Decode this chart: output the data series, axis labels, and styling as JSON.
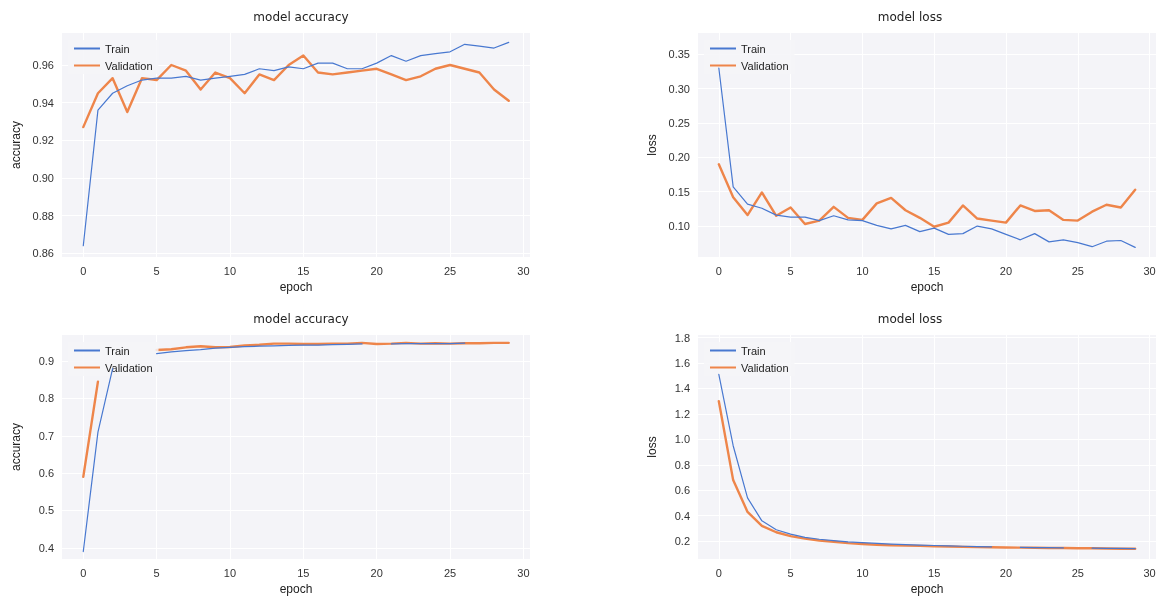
{
  "chart_data": [
    {
      "type": "line",
      "title": "model accuracy",
      "xlabel": "epoch",
      "ylabel": "accuracy",
      "x": [
        0,
        1,
        2,
        3,
        4,
        5,
        6,
        7,
        8,
        9,
        10,
        11,
        12,
        13,
        14,
        15,
        16,
        17,
        18,
        19,
        20,
        21,
        22,
        23,
        24,
        25,
        26,
        27,
        28,
        29
      ],
      "xlim": [
        -1.45,
        30.45
      ],
      "xticks": [
        0,
        5,
        10,
        15,
        20,
        25,
        30
      ],
      "ylim": [
        0.858,
        0.977
      ],
      "yticks": [
        0.86,
        0.88,
        {
          "value": 0.9,
          "label": "0.90"
        },
        0.92,
        0.94,
        0.96
      ],
      "grid": true,
      "legend": "top left",
      "series": [
        {
          "name": "Train",
          "color": "#4878d0",
          "values": [
            0.864,
            0.936,
            0.945,
            0.949,
            0.952,
            0.953,
            0.953,
            0.954,
            0.952,
            0.953,
            0.954,
            0.955,
            0.958,
            0.957,
            0.959,
            0.958,
            0.961,
            0.961,
            0.958,
            0.958,
            0.961,
            0.965,
            0.962,
            0.965,
            0.966,
            0.967,
            0.971,
            0.97,
            0.969,
            0.972
          ]
        },
        {
          "name": "Validation",
          "color": "#ee854a",
          "values": [
            0.927,
            0.945,
            0.953,
            0.935,
            0.953,
            0.952,
            0.96,
            0.957,
            0.947,
            0.956,
            0.953,
            0.945,
            0.955,
            0.952,
            0.96,
            0.965,
            0.956,
            0.955,
            0.956,
            0.957,
            0.958,
            0.955,
            0.952,
            0.954,
            0.958,
            0.96,
            0.958,
            0.956,
            0.947,
            0.941
          ]
        }
      ]
    },
    {
      "type": "line",
      "title": "model loss",
      "xlabel": "epoch",
      "ylabel": "loss",
      "x": [
        0,
        1,
        2,
        3,
        4,
        5,
        6,
        7,
        8,
        9,
        10,
        11,
        12,
        13,
        14,
        15,
        16,
        17,
        18,
        19,
        20,
        21,
        22,
        23,
        24,
        25,
        26,
        27,
        28,
        29
      ],
      "xlim": [
        -1.45,
        30.45
      ],
      "xticks": [
        0,
        5,
        10,
        15,
        20,
        25,
        30
      ],
      "ylim": [
        0.055,
        0.381
      ],
      "yticks": [
        {
          "value": 0.1,
          "label": "0.10"
        },
        0.15,
        {
          "value": 0.2,
          "label": "0.20"
        },
        0.25,
        {
          "value": 0.3,
          "label": "0.30"
        },
        0.35
      ],
      "grid": true,
      "legend": "top left",
      "series": [
        {
          "name": "Train",
          "color": "#4878d0",
          "values": [
            0.33,
            0.157,
            0.132,
            0.126,
            0.116,
            0.113,
            0.113,
            0.108,
            0.115,
            0.109,
            0.108,
            0.101,
            0.096,
            0.101,
            0.092,
            0.097,
            0.088,
            0.089,
            0.1,
            0.096,
            0.088,
            0.08,
            0.089,
            0.077,
            0.08,
            0.076,
            0.07,
            0.078,
            0.079,
            0.069
          ]
        },
        {
          "name": "Validation",
          "color": "#ee854a",
          "values": [
            0.19,
            0.142,
            0.116,
            0.149,
            0.115,
            0.127,
            0.103,
            0.108,
            0.128,
            0.112,
            0.109,
            0.133,
            0.141,
            0.123,
            0.112,
            0.099,
            0.105,
            0.13,
            0.111,
            0.108,
            0.105,
            0.13,
            0.122,
            0.123,
            0.109,
            0.108,
            0.121,
            0.131,
            0.127,
            0.153
          ]
        }
      ]
    },
    {
      "type": "line",
      "title": "model accuracy",
      "xlabel": "epoch",
      "ylabel": "accuracy",
      "x": [
        0,
        1,
        2,
        3,
        4,
        5,
        6,
        7,
        8,
        9,
        10,
        11,
        12,
        13,
        14,
        15,
        16,
        17,
        18,
        19,
        20,
        21,
        22,
        23,
        24,
        25,
        26,
        27,
        28,
        29
      ],
      "xlim": [
        -1.45,
        30.45
      ],
      "xticks": [
        0,
        5,
        10,
        15,
        20,
        25,
        30
      ],
      "ylim": [
        0.37,
        0.97
      ],
      "yticks": [
        0.4,
        0.5,
        0.6,
        0.7,
        0.8,
        0.9
      ],
      "grid": true,
      "legend": "top left",
      "series": [
        {
          "name": "Train",
          "color": "#4878d0",
          "values": [
            0.39,
            0.71,
            0.88,
            null,
            null,
            0.92,
            0.925,
            0.928,
            0.931,
            0.935,
            0.937,
            0.939,
            0.94,
            0.941,
            0.942,
            0.943,
            0.943,
            0.944,
            0.945,
            0.946,
            null,
            0.946,
            0.947,
            0.947,
            0.947,
            0.947,
            0.948,
            null,
            null,
            null
          ]
        },
        {
          "name": "Validation",
          "color": "#ee854a",
          "values": [
            0.59,
            0.845,
            null,
            null,
            null,
            0.93,
            0.932,
            0.937,
            0.94,
            0.937,
            0.938,
            0.942,
            0.944,
            0.947,
            0.947,
            0.946,
            0.946,
            0.947,
            0.947,
            0.949,
            0.946,
            0.947,
            0.949,
            0.947,
            0.948,
            0.947,
            0.948,
            0.948,
            0.949,
            0.949
          ]
        }
      ]
    },
    {
      "type": "line",
      "title": "model loss",
      "xlabel": "epoch",
      "ylabel": "loss",
      "x": [
        0,
        1,
        2,
        3,
        4,
        5,
        6,
        7,
        8,
        9,
        10,
        11,
        12,
        13,
        14,
        15,
        16,
        17,
        18,
        19,
        20,
        21,
        22,
        23,
        24,
        25,
        26,
        27,
        28,
        29
      ],
      "xlim": [
        -1.45,
        30.45
      ],
      "xticks": [
        0,
        5,
        10,
        15,
        20,
        25,
        30
      ],
      "ylim": [
        0.06,
        1.82
      ],
      "yticks": [
        0.2,
        0.4,
        0.6,
        0.8,
        {
          "value": 1,
          "label": "1.0"
        },
        1.2,
        1.4,
        1.6,
        1.8
      ],
      "grid": true,
      "legend": "top left",
      "series": [
        {
          "name": "Train",
          "color": "#4878d0",
          "values": [
            1.51,
            0.95,
            0.54,
            0.36,
            0.29,
            0.255,
            0.23,
            0.215,
            0.205,
            0.195,
            0.188,
            0.182,
            0.177,
            0.173,
            0.169,
            0.166,
            0.163,
            0.16,
            0.158,
            0.156,
            null,
            0.152,
            0.15,
            0.149,
            0.147,
            null,
            0.145,
            0.144,
            0.143,
            0.142
          ]
        },
        {
          "name": "Validation",
          "color": "#ee854a",
          "values": [
            1.3,
            0.68,
            0.43,
            0.32,
            0.27,
            0.24,
            0.22,
            0.205,
            0.195,
            0.185,
            0.178,
            0.172,
            0.168,
            0.165,
            0.163,
            0.16,
            0.158,
            0.155,
            0.153,
            0.152,
            0.15,
            0.149,
            0.148,
            0.147,
            0.146,
            0.145,
            0.144,
            0.142,
            0.141,
            0.14
          ]
        }
      ]
    }
  ]
}
